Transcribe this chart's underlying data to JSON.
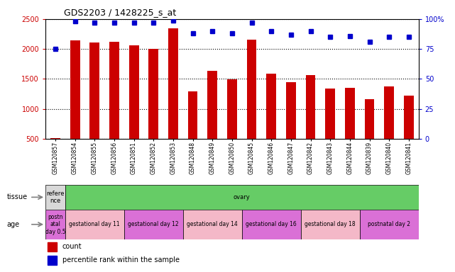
{
  "title": "GDS2203 / 1428225_s_at",
  "samples": [
    "GSM120857",
    "GSM120854",
    "GSM120855",
    "GSM120856",
    "GSM120851",
    "GSM120852",
    "GSM120853",
    "GSM120848",
    "GSM120849",
    "GSM120850",
    "GSM120845",
    "GSM120846",
    "GSM120847",
    "GSM120842",
    "GSM120843",
    "GSM120844",
    "GSM120839",
    "GSM120840",
    "GSM120841"
  ],
  "counts": [
    510,
    2140,
    2110,
    2120,
    2060,
    2000,
    2340,
    1290,
    1640,
    1490,
    2150,
    1590,
    1450,
    1560,
    1340,
    1350,
    1160,
    1370,
    1220
  ],
  "percentiles": [
    75,
    98,
    97,
    97,
    97,
    97,
    99,
    88,
    90,
    88,
    97,
    90,
    87,
    90,
    85,
    86,
    81,
    85,
    85
  ],
  "ylim_left": [
    500,
    2500
  ],
  "ylim_right": [
    0,
    100
  ],
  "yticks_left": [
    500,
    1000,
    1500,
    2000,
    2500
  ],
  "yticks_right": [
    0,
    25,
    50,
    75,
    100
  ],
  "bar_color": "#cc0000",
  "dot_color": "#0000cc",
  "grid_color": "#000000",
  "bg_color": "#ffffff",
  "ax_bg_color": "#ffffff",
  "tissue_row": {
    "label": "tissue",
    "groups": [
      {
        "text": "refere\nnce",
        "color": "#d8d8d8",
        "span": 1
      },
      {
        "text": "ovary",
        "color": "#66cc66",
        "span": 18
      }
    ]
  },
  "age_row": {
    "label": "age",
    "groups": [
      {
        "text": "postn\natal\nday 0.5",
        "color": "#da70d6",
        "span": 1
      },
      {
        "text": "gestational day 11",
        "color": "#f4b8c8",
        "span": 3
      },
      {
        "text": "gestational day 12",
        "color": "#da70d6",
        "span": 3
      },
      {
        "text": "gestational day 14",
        "color": "#f4b8c8",
        "span": 3
      },
      {
        "text": "gestational day 16",
        "color": "#da70d6",
        "span": 3
      },
      {
        "text": "gestational day 18",
        "color": "#f4b8c8",
        "span": 3
      },
      {
        "text": "postnatal day 2",
        "color": "#da70d6",
        "span": 3
      }
    ]
  }
}
